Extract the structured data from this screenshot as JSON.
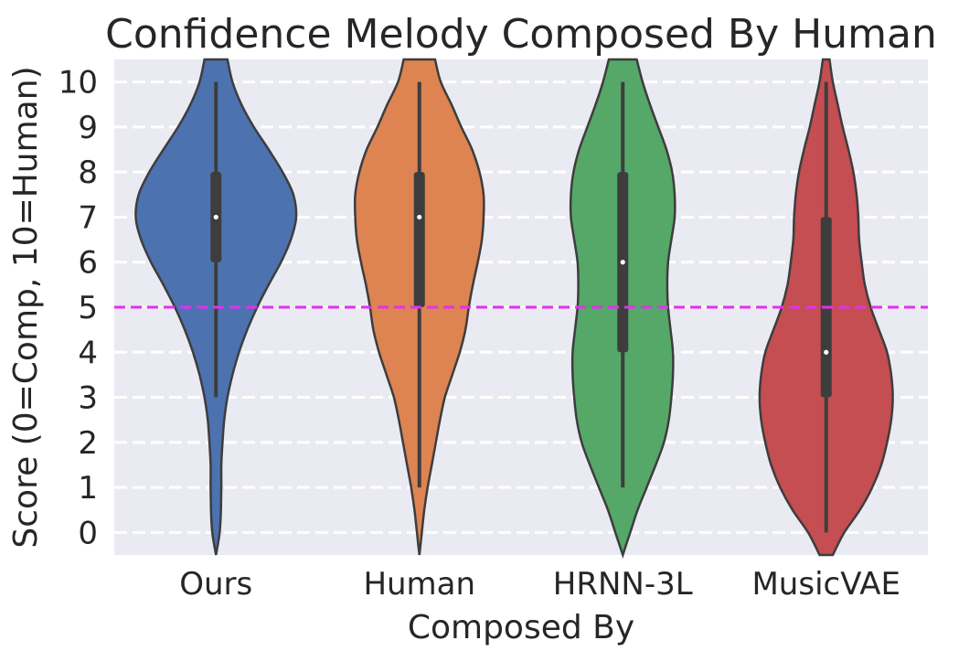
{
  "chart_data": {
    "type": "violin",
    "title": "Confidence Melody Composed By Human",
    "xlabel": "Composed By",
    "ylabel": "Score (0=Comp, 10=Human)",
    "categories": [
      "Ours",
      "Human",
      "HRNN-3L",
      "MusicVAE"
    ],
    "yticks": [
      "0",
      "1",
      "2",
      "3",
      "4",
      "5",
      "6",
      "7",
      "8",
      "9",
      "10"
    ],
    "ylim": [
      -0.5,
      10.5
    ],
    "grid": true,
    "reference_line": {
      "y": 5,
      "color": "#e62ef0",
      "style": "dashed"
    },
    "background_color": "#eaeaf2",
    "colors": [
      "#4c72b0",
      "#dd8452",
      "#55a868",
      "#c44e52"
    ],
    "stats": [
      {
        "name": "Ours",
        "min": 3,
        "q1": 6,
        "median": 7,
        "q3": 8,
        "max": 10
      },
      {
        "name": "Human",
        "min": 1,
        "q1": 5,
        "median": 7,
        "q3": 8,
        "max": 10
      },
      {
        "name": "HRNN-3L",
        "min": 1,
        "q1": 4,
        "median": 6,
        "q3": 8,
        "max": 10
      },
      {
        "name": "MusicVAE",
        "min": 0,
        "q1": 3,
        "median": 4,
        "q3": 7,
        "max": 10
      }
    ],
    "density": [
      {
        "name": "Ours",
        "y": [
          -0.5,
          0,
          0.5,
          1,
          1.5,
          2,
          2.5,
          3,
          3.5,
          4,
          4.5,
          5,
          5.5,
          6,
          6.5,
          7,
          7.5,
          8,
          8.5,
          9,
          9.5,
          10,
          10.5
        ],
        "width": [
          0.0,
          0.09,
          0.12,
          0.13,
          0.13,
          0.16,
          0.2,
          0.28,
          0.4,
          0.56,
          0.76,
          1.0,
          1.28,
          1.58,
          1.82,
          1.95,
          1.88,
          1.62,
          1.28,
          0.92,
          0.62,
          0.4,
          0.28
        ]
      },
      {
        "name": "Human",
        "y": [
          -0.5,
          0,
          0.5,
          1,
          1.5,
          2,
          2.5,
          3,
          3.5,
          4,
          4.5,
          5,
          5.5,
          6,
          6.5,
          7,
          7.5,
          8,
          8.5,
          9,
          9.5,
          10,
          10.5
        ],
        "width": [
          0.0,
          0.06,
          0.12,
          0.2,
          0.3,
          0.4,
          0.5,
          0.62,
          0.8,
          0.98,
          1.12,
          1.2,
          1.3,
          1.42,
          1.52,
          1.56,
          1.56,
          1.46,
          1.28,
          1.02,
          0.78,
          0.52,
          0.38
        ]
      },
      {
        "name": "HRNN-3L",
        "y": [
          -0.5,
          0,
          0.5,
          1,
          1.5,
          2,
          2.5,
          3,
          3.5,
          4,
          4.5,
          5,
          5.5,
          6,
          6.5,
          7,
          7.5,
          8,
          8.5,
          9,
          9.5,
          10,
          10.5
        ],
        "width": [
          0.0,
          0.18,
          0.36,
          0.58,
          0.8,
          1.0,
          1.12,
          1.18,
          1.22,
          1.22,
          1.16,
          1.1,
          1.08,
          1.1,
          1.18,
          1.26,
          1.26,
          1.2,
          1.06,
          0.86,
          0.66,
          0.48,
          0.34
        ]
      },
      {
        "name": "MusicVAE",
        "y": [
          -0.5,
          0,
          0.5,
          1,
          1.5,
          2,
          2.5,
          3,
          3.5,
          4,
          4.5,
          5,
          5.5,
          6,
          6.5,
          7,
          7.5,
          8,
          8.5,
          9,
          9.5,
          10,
          10.5
        ],
        "width": [
          0.16,
          0.44,
          0.82,
          1.12,
          1.34,
          1.48,
          1.58,
          1.62,
          1.58,
          1.48,
          1.28,
          1.08,
          0.94,
          0.86,
          0.8,
          0.78,
          0.74,
          0.66,
          0.54,
          0.4,
          0.28,
          0.16,
          0.08
        ]
      }
    ]
  }
}
